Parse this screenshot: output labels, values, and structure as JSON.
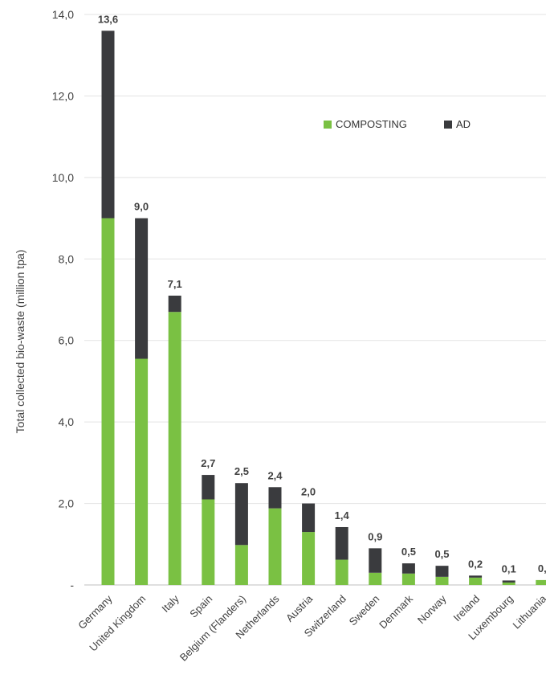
{
  "chart_data": {
    "type": "bar",
    "stacked": true,
    "categories": [
      "Germany",
      "United Kingdom",
      "Italy",
      "Spain",
      "Belgium (Flanders)",
      "Netherlands",
      "Austria",
      "Switzerland",
      "Sweden",
      "Denmark",
      "Norway",
      "Ireland",
      "Luxembourg",
      "Lithuania"
    ],
    "series": [
      {
        "name": "COMPOSTING",
        "color": "#7ac143",
        "values": [
          9.0,
          5.55,
          6.7,
          2.1,
          0.98,
          1.88,
          1.3,
          0.62,
          0.3,
          0.28,
          0.2,
          0.18,
          0.06,
          0.12
        ]
      },
      {
        "name": "AD",
        "color": "#3a3b3e",
        "values": [
          4.6,
          3.45,
          0.4,
          0.6,
          1.52,
          0.52,
          0.7,
          0.8,
          0.6,
          0.25,
          0.27,
          0.05,
          0.05,
          0.0
        ]
      }
    ],
    "totals_labels": [
      "13,6",
      "9,0",
      "7,1",
      "2,7",
      "2,5",
      "2,4",
      "2,0",
      "1,4",
      "0,9",
      "0,5",
      "0,5",
      "0,2",
      "0,1",
      "0,"
    ],
    "ylabel": "Total collected bio-waste (million tpa)",
    "xlabel": "",
    "ylim": [
      0,
      14
    ],
    "yticks": [
      0,
      2,
      4,
      6,
      8,
      10,
      12,
      14
    ],
    "ytick_labels": [
      "-",
      "2,0",
      "4,0",
      "6,0",
      "8,0",
      "10,0",
      "12,0",
      "14,0"
    ],
    "grid": true,
    "legend_position": "top-right"
  }
}
